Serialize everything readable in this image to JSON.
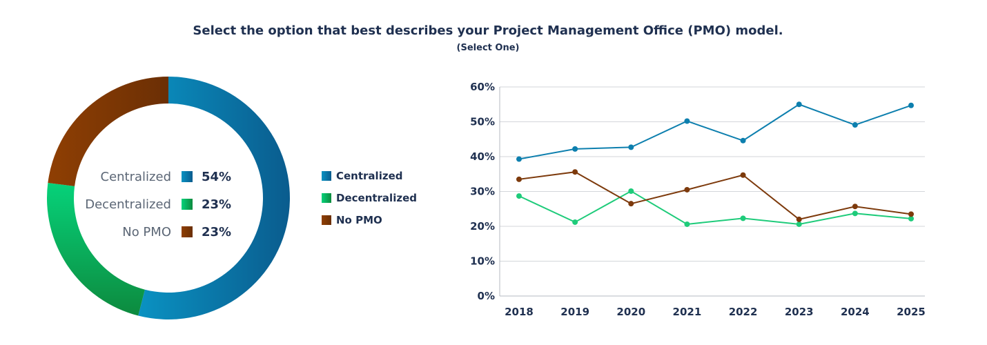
{
  "title": "Select the option that best describes your Project Management Office (PMO) model.",
  "subtitle": "(Select One)",
  "chart_data": [
    {
      "type": "pie",
      "style": "donut",
      "categories": [
        "Centralized",
        "Decentralized",
        "No PMO"
      ],
      "values": [
        54,
        23,
        23
      ],
      "value_labels": [
        "54%",
        "23%",
        "23%"
      ],
      "colors": [
        "#0a7fb0",
        "#16c36a",
        "#7a3608"
      ],
      "legend": {
        "items": [
          "Centralized",
          "Decentralized",
          "No PMO"
        ],
        "placement": "right"
      }
    },
    {
      "type": "line",
      "x": [
        "2018",
        "2019",
        "2020",
        "2021",
        "2022",
        "2023",
        "2024",
        "2025"
      ],
      "series": [
        {
          "name": "Centralized",
          "color": "#0d7fae",
          "values": [
            39.3,
            42.2,
            42.7,
            50.2,
            44.6,
            55.0,
            49.1,
            54.7
          ]
        },
        {
          "name": "Decentralized",
          "color": "#1ecb7a",
          "values": [
            28.7,
            21.2,
            30.1,
            20.6,
            22.3,
            20.6,
            23.7,
            22.2
          ]
        },
        {
          "name": "No PMO",
          "color": "#7d3a0c",
          "values": [
            33.5,
            35.6,
            26.5,
            30.5,
            34.7,
            22.0,
            25.7,
            23.5
          ]
        }
      ],
      "y_ticks": [
        "0%",
        "10%",
        "20%",
        "30%",
        "40%",
        "50%",
        "60%"
      ],
      "ylim": [
        0,
        60
      ],
      "grid": true,
      "xlabel": "",
      "ylabel": ""
    }
  ]
}
